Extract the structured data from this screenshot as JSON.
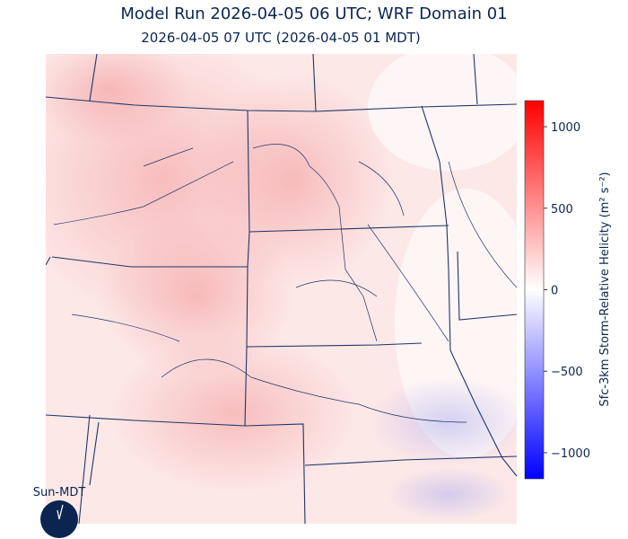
{
  "title": "Model Run 2026-04-05 06 UTC; WRF Domain 01",
  "subtitle": "2026-04-05 07 UTC  (2026-04-05 01 MDT)",
  "colorbar": {
    "label": "Sfc-3km Storm-Relative Helicity (m² s⁻²)",
    "lim": [
      -1160,
      1160
    ],
    "ticks": [
      {
        "value": -1000,
        "label": "−1000"
      },
      {
        "value": -500,
        "label": "−500"
      },
      0,
      500,
      1000
    ],
    "colors": [
      "#0000ff",
      "#ffffff",
      "#ff0000"
    ]
  },
  "clock": {
    "label": "Sun-MDT"
  }
}
